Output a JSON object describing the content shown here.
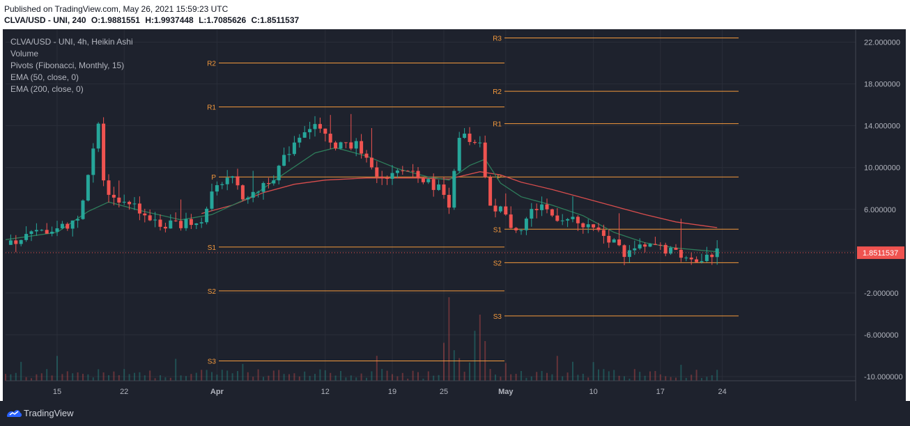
{
  "header": {
    "published": "Published on TradingView.com, May 26, 2021 15:59:23 UTC",
    "symbol": "CLVA/USD - UNI, 240",
    "open": "O:1.9881551",
    "high": "H:1.9937448",
    "low": "L:1.7085626",
    "close": "C:1.8511537"
  },
  "legend": {
    "title": "CLVA/USD - UNI, 4h, Heikin Ashi",
    "volume": "Volume",
    "pivots": "Pivots (Fibonacci, Monthly, 15)",
    "ema50": "EMA (50, close, 0)",
    "ema200": "EMA (200, close, 0)"
  },
  "footer": {
    "brand": "TradingView"
  },
  "chart_data": {
    "type": "candlestick",
    "x_ticks": [
      "15",
      "22",
      "Apr",
      "12",
      "19",
      "25",
      "May",
      "10",
      "17",
      "24"
    ],
    "y_ticks": [
      "22.000000",
      "18.000000",
      "14.000000",
      "10.000000",
      "6.000000",
      "2.000000",
      "-2.000000",
      "-6.000000",
      "-10.000000"
    ],
    "ylim": [
      -10,
      23
    ],
    "last_price": "1.8511537",
    "price_path": [
      [
        0,
        2.6
      ],
      [
        4,
        3.5
      ],
      [
        8,
        4.0
      ],
      [
        12,
        4.5
      ],
      [
        14,
        5.2
      ],
      [
        16,
        9.0
      ],
      [
        18,
        14.5
      ],
      [
        19,
        8.5
      ],
      [
        21,
        7.0
      ],
      [
        24,
        6.8
      ],
      [
        27,
        5.5
      ],
      [
        30,
        4.4
      ],
      [
        33,
        4.6
      ],
      [
        36,
        4.7
      ],
      [
        38,
        5.0
      ],
      [
        40,
        7.6
      ],
      [
        42,
        8.2
      ],
      [
        44,
        9.0
      ],
      [
        46,
        7.2
      ],
      [
        48,
        7.3
      ],
      [
        50,
        8.5
      ],
      [
        52,
        9.2
      ],
      [
        54,
        10.8
      ],
      [
        56,
        12.5
      ],
      [
        58,
        13.7
      ],
      [
        60,
        14.1
      ],
      [
        62,
        12.8
      ],
      [
        64,
        11.7
      ],
      [
        66,
        12.4
      ],
      [
        68,
        12.1
      ],
      [
        70,
        10.5
      ],
      [
        72,
        8.9
      ],
      [
        74,
        8.7
      ],
      [
        76,
        9.5
      ],
      [
        78,
        9.8
      ],
      [
        80,
        9.4
      ],
      [
        82,
        8.5
      ],
      [
        84,
        8.1
      ],
      [
        85,
        7.4
      ],
      [
        86,
        6.6
      ],
      [
        87,
        10.0
      ],
      [
        88,
        12.5
      ],
      [
        89,
        13.0
      ],
      [
        90,
        12.2
      ],
      [
        92,
        12.0
      ],
      [
        93,
        9.2
      ],
      [
        94,
        6.0
      ],
      [
        96,
        6.2
      ],
      [
        98,
        4.2
      ],
      [
        100,
        4.4
      ],
      [
        102,
        5.8
      ],
      [
        104,
        6.5
      ],
      [
        106,
        5.4
      ],
      [
        108,
        5.2
      ],
      [
        110,
        4.9
      ],
      [
        112,
        4.3
      ],
      [
        114,
        4.0
      ],
      [
        116,
        3.5
      ],
      [
        118,
        2.9
      ],
      [
        120,
        1.7
      ],
      [
        122,
        2.2
      ],
      [
        124,
        2.3
      ],
      [
        126,
        2.5
      ],
      [
        128,
        2.1
      ],
      [
        130,
        1.8
      ],
      [
        132,
        1.5
      ],
      [
        134,
        1.3
      ],
      [
        136,
        1.6
      ],
      [
        138,
        1.85
      ]
    ],
    "ema50": [
      [
        0,
        3.1
      ],
      [
        10,
        3.8
      ],
      [
        16,
        5.8
      ],
      [
        20,
        6.7
      ],
      [
        26,
        5.9
      ],
      [
        34,
        5.0
      ],
      [
        40,
        5.5
      ],
      [
        48,
        7.3
      ],
      [
        54,
        9.4
      ],
      [
        60,
        11.4
      ],
      [
        64,
        11.9
      ],
      [
        70,
        11.1
      ],
      [
        76,
        9.9
      ],
      [
        82,
        9.1
      ],
      [
        86,
        8.8
      ],
      [
        90,
        10.2
      ],
      [
        93,
        10.8
      ],
      [
        96,
        8.5
      ],
      [
        100,
        7.2
      ],
      [
        106,
        6.4
      ],
      [
        112,
        5.4
      ],
      [
        118,
        3.8
      ],
      [
        124,
        2.8
      ],
      [
        130,
        2.3
      ],
      [
        138,
        1.95
      ]
    ],
    "ema200": [
      [
        38,
        5.6
      ],
      [
        44,
        6.4
      ],
      [
        50,
        7.6
      ],
      [
        56,
        8.4
      ],
      [
        62,
        8.8
      ],
      [
        70,
        9.0
      ],
      [
        80,
        9.0
      ],
      [
        86,
        8.9
      ],
      [
        92,
        9.6
      ],
      [
        96,
        9.3
      ],
      [
        100,
        8.6
      ],
      [
        106,
        7.9
      ],
      [
        112,
        7.1
      ],
      [
        118,
        6.3
      ],
      [
        124,
        5.5
      ],
      [
        130,
        4.8
      ],
      [
        138,
        4.25
      ]
    ],
    "pivots_march": [
      {
        "label": "R2",
        "value": 20.0
      },
      {
        "label": "R1",
        "value": 15.8
      },
      {
        "label": "P",
        "value": 9.1
      },
      {
        "label": "S1",
        "value": 2.4
      },
      {
        "label": "S2",
        "value": -1.8
      },
      {
        "label": "S3",
        "value": -8.5
      }
    ],
    "pivots_may": [
      {
        "label": "R3",
        "value": 22.4
      },
      {
        "label": "R2",
        "value": 17.3
      },
      {
        "label": "R1",
        "value": 14.2
      },
      {
        "label": "P",
        "value": 9.1
      },
      {
        "label": "S1",
        "value": 4.1
      },
      {
        "label": "S2",
        "value": 0.9
      },
      {
        "label": "S3",
        "value": -4.2
      }
    ],
    "colors": {
      "up": "#26a69a",
      "down": "#ef5350",
      "ema50": "#2e7d5b",
      "ema200": "#d84d4d",
      "pivot": "#f59a3d",
      "bg": "#1e222d",
      "grid": "#2a2e39",
      "axis_text": "#b2b5be",
      "price_tag": "#ef5350"
    }
  }
}
